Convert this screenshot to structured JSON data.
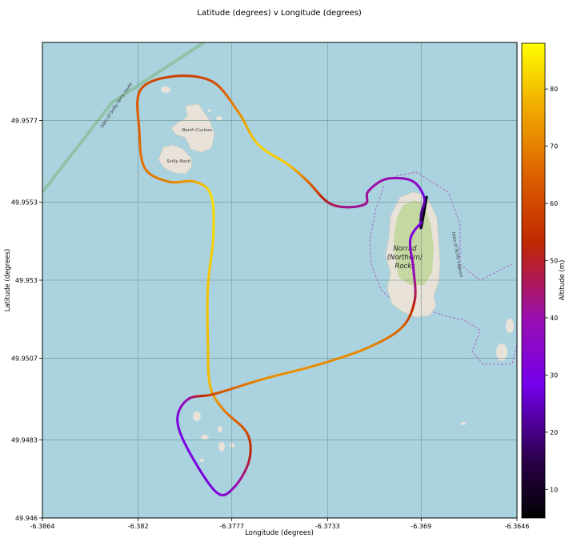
{
  "chart_data": {
    "type": "line",
    "title": "Latitude (degrees) v Longitude (degrees)",
    "xlabel": "Longitude (degrees)",
    "ylabel": "Latitude (degrees)",
    "xlim": [
      -6.3864,
      -6.3646
    ],
    "ylim": [
      49.946,
      49.96
    ],
    "xticks": [
      "-6.3864",
      "-6.382",
      "-6.3777",
      "-6.3733",
      "-6.369",
      "-6.3646"
    ],
    "yticks": [
      "49.946",
      "49.9483",
      "49.9507",
      "49.953",
      "49.9553",
      "49.9577"
    ],
    "grid": true,
    "colorbar": {
      "label": "Altitude (m)",
      "range": [
        5,
        88
      ],
      "ticks": [
        "10",
        "20",
        "30",
        "40",
        "50",
        "60",
        "70",
        "80"
      ],
      "colormap": "gnuplot"
    },
    "background": "map",
    "map_labels": {
      "north_cuckoo": "North Cuckoo",
      "scilly_rock": "Scilly Rock",
      "ferry_route": "Isles of Scilly ferry route",
      "island": "Norrad (Northern) Rocks",
      "island_line1": "Norrad",
      "island_line2": "(Northern)",
      "island_line3": "Rocks",
      "boundary": "Isles of Scilly Lagoon"
    },
    "series": [
      {
        "points": [
          {
            "x": -6.36875,
            "y": 49.95545,
            "z": 5
          },
          {
            "x": -6.369,
            "y": 49.95455,
            "z": 10
          },
          {
            "x": -6.369,
            "y": 49.95495,
            "z": 20
          },
          {
            "x": -6.36885,
            "y": 49.9554,
            "z": 25
          },
          {
            "x": -6.36925,
            "y": 49.95585,
            "z": 36
          },
          {
            "x": -6.3699,
            "y": 49.956,
            "z": 38
          },
          {
            "x": -6.37075,
            "y": 49.95595,
            "z": 40
          },
          {
            "x": -6.37145,
            "y": 49.9556,
            "z": 41
          },
          {
            "x": -6.37155,
            "y": 49.95525,
            "z": 42
          },
          {
            "x": -6.37245,
            "y": 49.95515,
            "z": 42
          },
          {
            "x": -6.3733,
            "y": 49.9553,
            "z": 48
          },
          {
            "x": -6.3742,
            "y": 49.9559,
            "z": 65
          },
          {
            "x": -6.3751,
            "y": 49.9564,
            "z": 80
          },
          {
            "x": -6.3765,
            "y": 49.957,
            "z": 82
          },
          {
            "x": -6.3774,
            "y": 49.95795,
            "z": 72
          },
          {
            "x": -6.3786,
            "y": 49.95885,
            "z": 60
          },
          {
            "x": -6.3804,
            "y": 49.959,
            "z": 58
          },
          {
            "x": -6.3819,
            "y": 49.9586,
            "z": 62
          },
          {
            "x": -6.38195,
            "y": 49.9574,
            "z": 65
          },
          {
            "x": -6.3817,
            "y": 49.9563,
            "z": 68
          },
          {
            "x": -6.3806,
            "y": 49.9559,
            "z": 70
          },
          {
            "x": -6.3794,
            "y": 49.9559,
            "z": 75
          },
          {
            "x": -6.37865,
            "y": 49.9555,
            "z": 84
          },
          {
            "x": -6.37855,
            "y": 49.9543,
            "z": 82
          },
          {
            "x": -6.3788,
            "y": 49.9528,
            "z": 80
          },
          {
            "x": -6.3788,
            "y": 49.9512,
            "z": 79
          },
          {
            "x": -6.3787,
            "y": 49.9499,
            "z": 79
          },
          {
            "x": -6.3781,
            "y": 49.9492,
            "z": 70
          },
          {
            "x": -6.377,
            "y": 49.9485,
            "z": 60
          },
          {
            "x": -6.3769,
            "y": 49.9477,
            "z": 50
          },
          {
            "x": -6.3776,
            "y": 49.9469,
            "z": 38
          },
          {
            "x": -6.3784,
            "y": 49.94675,
            "z": 32
          },
          {
            "x": -6.3797,
            "y": 49.948,
            "z": 30
          },
          {
            "x": -6.3802,
            "y": 49.9489,
            "z": 31
          },
          {
            "x": -6.3797,
            "y": 49.9495,
            "z": 40
          },
          {
            "x": -6.3785,
            "y": 49.94965,
            "z": 60
          },
          {
            "x": -6.3762,
            "y": 49.9501,
            "z": 72
          },
          {
            "x": -6.3738,
            "y": 49.9505,
            "z": 72
          },
          {
            "x": -6.3715,
            "y": 49.951,
            "z": 71
          },
          {
            "x": -6.3699,
            "y": 49.9516,
            "z": 65
          },
          {
            "x": -6.3693,
            "y": 49.9524,
            "z": 50
          },
          {
            "x": -6.36935,
            "y": 49.9533,
            "z": 38
          },
          {
            "x": -6.3695,
            "y": 49.9542,
            "z": 32
          },
          {
            "x": -6.369,
            "y": 49.9547,
            "z": 30
          }
        ]
      }
    ]
  }
}
